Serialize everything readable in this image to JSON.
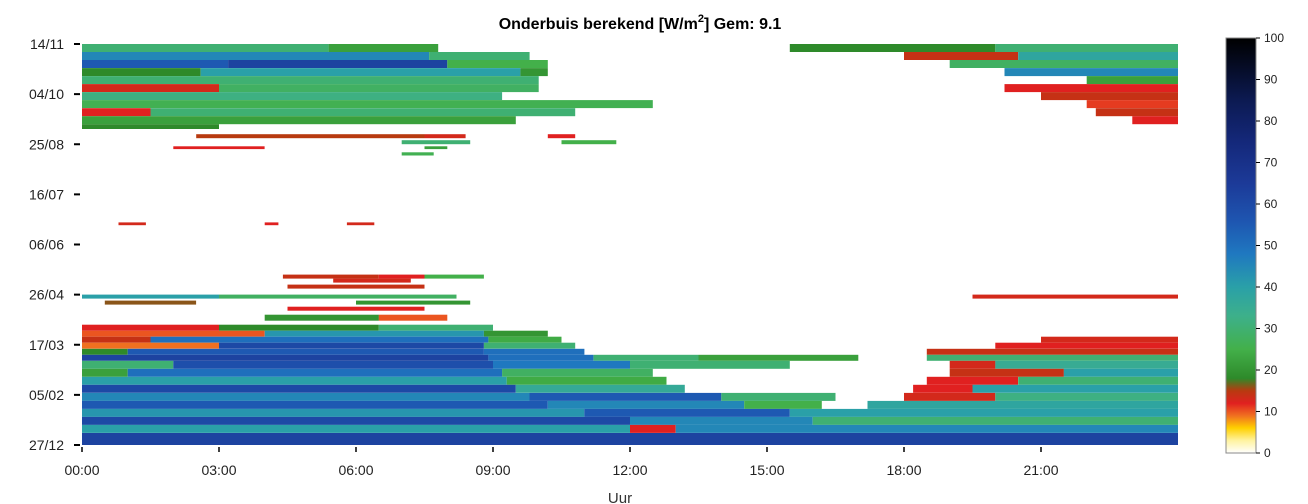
{
  "chart_data": {
    "type": "heatmap",
    "title_main": "Onderbuis berekend [W/m",
    "title_sup": "2",
    "title_tail": "] Gem: 9.1",
    "xlabel": "Uur",
    "ylabel": "",
    "x_ticks": [
      "00:00",
      "03:00",
      "06:00",
      "09:00",
      "12:00",
      "15:00",
      "18:00",
      "21:00"
    ],
    "x_tick_hours": [
      0,
      3,
      6,
      9,
      12,
      15,
      18,
      21
    ],
    "xlim_hours": [
      0,
      24
    ],
    "y_ticks": [
      "14/11",
      "04/10",
      "25/08",
      "16/07",
      "06/06",
      "26/04",
      "17/03",
      "05/02",
      "27/12"
    ],
    "colorbar": {
      "ticks": [
        0,
        10,
        20,
        30,
        40,
        50,
        60,
        70,
        80,
        90,
        100
      ],
      "range": [
        0,
        100
      ],
      "stops": [
        {
          "v": 0,
          "c": "#ffffff"
        },
        {
          "v": 3,
          "c": "#fff3a0"
        },
        {
          "v": 6,
          "c": "#ffd000"
        },
        {
          "v": 9,
          "c": "#f07020"
        },
        {
          "v": 12,
          "c": "#e02020"
        },
        {
          "v": 15,
          "c": "#b83a10"
        },
        {
          "v": 18,
          "c": "#2e8a2a"
        },
        {
          "v": 25,
          "c": "#43b04a"
        },
        {
          "v": 33,
          "c": "#3db08a"
        },
        {
          "v": 40,
          "c": "#2aa0a8"
        },
        {
          "v": 48,
          "c": "#1f78c0"
        },
        {
          "v": 56,
          "c": "#1e55b0"
        },
        {
          "v": 65,
          "c": "#1c3a98"
        },
        {
          "v": 75,
          "c": "#14287a"
        },
        {
          "v": 85,
          "c": "#0c1a52"
        },
        {
          "v": 100,
          "c": "#000000"
        }
      ]
    },
    "bands": [
      {
        "y0": 0.0,
        "y1": 0.02,
        "bands": [
          [
            0,
            5.4,
            30
          ],
          [
            5.4,
            7.8,
            22
          ],
          [
            15.5,
            20,
            18
          ],
          [
            20,
            24,
            30
          ]
        ]
      },
      {
        "y0": 0.02,
        "y1": 0.04,
        "bands": [
          [
            0,
            7.6,
            45
          ],
          [
            7.6,
            9.8,
            30
          ],
          [
            18,
            20.5,
            14
          ],
          [
            20.5,
            24,
            38
          ]
        ]
      },
      {
        "y0": 0.04,
        "y1": 0.06,
        "bands": [
          [
            0,
            3.2,
            55
          ],
          [
            3.2,
            8.0,
            62
          ],
          [
            8.0,
            10.2,
            25
          ],
          [
            19,
            24,
            28
          ]
        ]
      },
      {
        "y0": 0.06,
        "y1": 0.08,
        "bands": [
          [
            0,
            2.6,
            18
          ],
          [
            2.6,
            9.6,
            40
          ],
          [
            9.6,
            10.2,
            20
          ],
          [
            20.2,
            24,
            45
          ]
        ]
      },
      {
        "y0": 0.08,
        "y1": 0.1,
        "bands": [
          [
            0,
            10.0,
            30
          ],
          [
            22.0,
            24,
            22
          ]
        ]
      },
      {
        "y0": 0.1,
        "y1": 0.12,
        "bands": [
          [
            0,
            3.0,
            13
          ],
          [
            3.0,
            10.0,
            28
          ],
          [
            20.2,
            24,
            12
          ]
        ]
      },
      {
        "y0": 0.12,
        "y1": 0.14,
        "bands": [
          [
            0,
            9.2,
            32
          ],
          [
            21.0,
            24,
            14
          ]
        ]
      },
      {
        "y0": 0.14,
        "y1": 0.16,
        "bands": [
          [
            0,
            12.5,
            26
          ],
          [
            22.0,
            24,
            11
          ]
        ]
      },
      {
        "y0": 0.16,
        "y1": 0.18,
        "bands": [
          [
            0,
            1.5,
            12
          ],
          [
            1.5,
            10.8,
            30
          ],
          [
            22.2,
            24,
            14
          ]
        ]
      },
      {
        "y0": 0.18,
        "y1": 0.2,
        "bands": [
          [
            0,
            9.5,
            22
          ],
          [
            23.0,
            24,
            12
          ]
        ]
      },
      {
        "y0": 0.2,
        "y1": 0.212,
        "bands": [
          [
            0,
            3.0,
            18
          ]
        ]
      },
      {
        "y0": 0.225,
        "y1": 0.235,
        "bands": [
          [
            2.5,
            7.5,
            15
          ],
          [
            7.5,
            8.4,
            13
          ],
          [
            10.2,
            10.8,
            12
          ]
        ]
      },
      {
        "y0": 0.24,
        "y1": 0.25,
        "bands": [
          [
            7.0,
            8.5,
            30
          ],
          [
            10.5,
            11.7,
            25
          ]
        ]
      },
      {
        "y0": 0.255,
        "y1": 0.262,
        "bands": [
          [
            2.0,
            4.0,
            12
          ],
          [
            7.5,
            8.0,
            22
          ]
        ]
      },
      {
        "y0": 0.27,
        "y1": 0.278,
        "bands": [
          [
            7.0,
            7.7,
            26
          ]
        ]
      },
      {
        "y0": 0.445,
        "y1": 0.452,
        "bands": [
          [
            0.8,
            1.4,
            13
          ],
          [
            4.0,
            4.3,
            12
          ],
          [
            5.8,
            6.4,
            13
          ]
        ]
      },
      {
        "y0": 0.575,
        "y1": 0.585,
        "bands": [
          [
            4.4,
            6.5,
            14
          ],
          [
            6.5,
            7.5,
            12
          ],
          [
            7.5,
            8.8,
            25
          ]
        ]
      },
      {
        "y0": 0.585,
        "y1": 0.595,
        "bands": [
          [
            5.5,
            7.2,
            13
          ]
        ]
      },
      {
        "y0": 0.6,
        "y1": 0.61,
        "bands": [
          [
            4.5,
            7.5,
            14
          ]
        ]
      },
      {
        "y0": 0.625,
        "y1": 0.635,
        "bands": [
          [
            0,
            3.0,
            40
          ],
          [
            3.0,
            8.2,
            28
          ],
          [
            19.5,
            24,
            13
          ]
        ]
      },
      {
        "y0": 0.64,
        "y1": 0.65,
        "bands": [
          [
            0.5,
            2.5,
            16
          ],
          [
            6.0,
            8.5,
            20
          ]
        ]
      },
      {
        "y0": 0.655,
        "y1": 0.665,
        "bands": [
          [
            4.5,
            7.5,
            12
          ]
        ]
      },
      {
        "y0": 0.675,
        "y1": 0.69,
        "bands": [
          [
            4.0,
            6.5,
            20
          ],
          [
            6.5,
            8.0,
            10
          ]
        ]
      },
      {
        "y0": 0.7,
        "y1": 0.715,
        "bands": [
          [
            0,
            3.0,
            12
          ],
          [
            3.0,
            6.5,
            18
          ],
          [
            6.5,
            9.0,
            30
          ]
        ]
      },
      {
        "y0": 0.715,
        "y1": 0.73,
        "bands": [
          [
            0,
            4.0,
            10
          ],
          [
            4.0,
            8.8,
            42
          ],
          [
            8.8,
            10.2,
            20
          ]
        ]
      },
      {
        "y0": 0.73,
        "y1": 0.745,
        "bands": [
          [
            0,
            1.5,
            14
          ],
          [
            1.5,
            8.9,
            50
          ],
          [
            8.9,
            10.5,
            24
          ],
          [
            21.0,
            24,
            13
          ]
        ]
      },
      {
        "y0": 0.745,
        "y1": 0.76,
        "bands": [
          [
            0,
            3.0,
            9
          ],
          [
            3.0,
            8.8,
            60
          ],
          [
            8.8,
            10.8,
            30
          ],
          [
            20.0,
            24,
            12
          ]
        ]
      },
      {
        "y0": 0.76,
        "y1": 0.775,
        "bands": [
          [
            0,
            1.0,
            18
          ],
          [
            1.0,
            8.8,
            55
          ],
          [
            8.8,
            11.0,
            50
          ],
          [
            18.5,
            24,
            14
          ]
        ]
      },
      {
        "y0": 0.775,
        "y1": 0.79,
        "bands": [
          [
            0,
            8.9,
            62
          ],
          [
            8.9,
            11.2,
            50
          ],
          [
            11.2,
            13.5,
            30
          ],
          [
            13.5,
            17.0,
            22
          ],
          [
            18.5,
            24,
            30
          ]
        ]
      },
      {
        "y0": 0.79,
        "y1": 0.81,
        "bands": [
          [
            0,
            2.0,
            30
          ],
          [
            2.0,
            9.0,
            58
          ],
          [
            9.0,
            12.0,
            48
          ],
          [
            12.0,
            15.5,
            30
          ],
          [
            19.0,
            20.0,
            13
          ],
          [
            20.0,
            24,
            35
          ]
        ]
      },
      {
        "y0": 0.81,
        "y1": 0.83,
        "bands": [
          [
            0,
            1.0,
            22
          ],
          [
            1.0,
            9.2,
            50
          ],
          [
            9.2,
            12.5,
            28
          ],
          [
            19.0,
            21.5,
            14
          ],
          [
            21.5,
            24,
            40
          ]
        ]
      },
      {
        "y0": 0.83,
        "y1": 0.85,
        "bands": [
          [
            0,
            9.3,
            40
          ],
          [
            9.3,
            12.8,
            24
          ],
          [
            18.5,
            20.5,
            12
          ],
          [
            20.5,
            24,
            30
          ]
        ]
      },
      {
        "y0": 0.85,
        "y1": 0.87,
        "bands": [
          [
            0,
            9.5,
            60
          ],
          [
            9.5,
            13.2,
            36
          ],
          [
            18.2,
            19.5,
            12
          ],
          [
            19.5,
            24,
            40
          ]
        ]
      },
      {
        "y0": 0.87,
        "y1": 0.89,
        "bands": [
          [
            0,
            9.8,
            45
          ],
          [
            9.8,
            14.0,
            55
          ],
          [
            14.0,
            16.5,
            30
          ],
          [
            18.0,
            20.0,
            13
          ],
          [
            20.0,
            24,
            32
          ]
        ]
      },
      {
        "y0": 0.89,
        "y1": 0.91,
        "bands": [
          [
            0,
            10.2,
            55
          ],
          [
            10.2,
            14.5,
            45
          ],
          [
            14.5,
            16.2,
            25
          ],
          [
            17.2,
            24,
            38
          ]
        ]
      },
      {
        "y0": 0.91,
        "y1": 0.93,
        "bands": [
          [
            0,
            11.0,
            42
          ],
          [
            11.0,
            15.5,
            55
          ],
          [
            15.5,
            24,
            40
          ]
        ]
      },
      {
        "y0": 0.93,
        "y1": 0.95,
        "bands": [
          [
            0,
            12.0,
            60
          ],
          [
            12.0,
            16.0,
            45
          ],
          [
            16.0,
            24,
            30
          ]
        ]
      },
      {
        "y0": 0.95,
        "y1": 0.97,
        "bands": [
          [
            0,
            12.0,
            40
          ],
          [
            12.0,
            13.0,
            12
          ],
          [
            13.0,
            24,
            45
          ]
        ]
      },
      {
        "y0": 0.97,
        "y1": 1.0,
        "bands": [
          [
            0,
            24,
            62
          ]
        ]
      }
    ]
  }
}
